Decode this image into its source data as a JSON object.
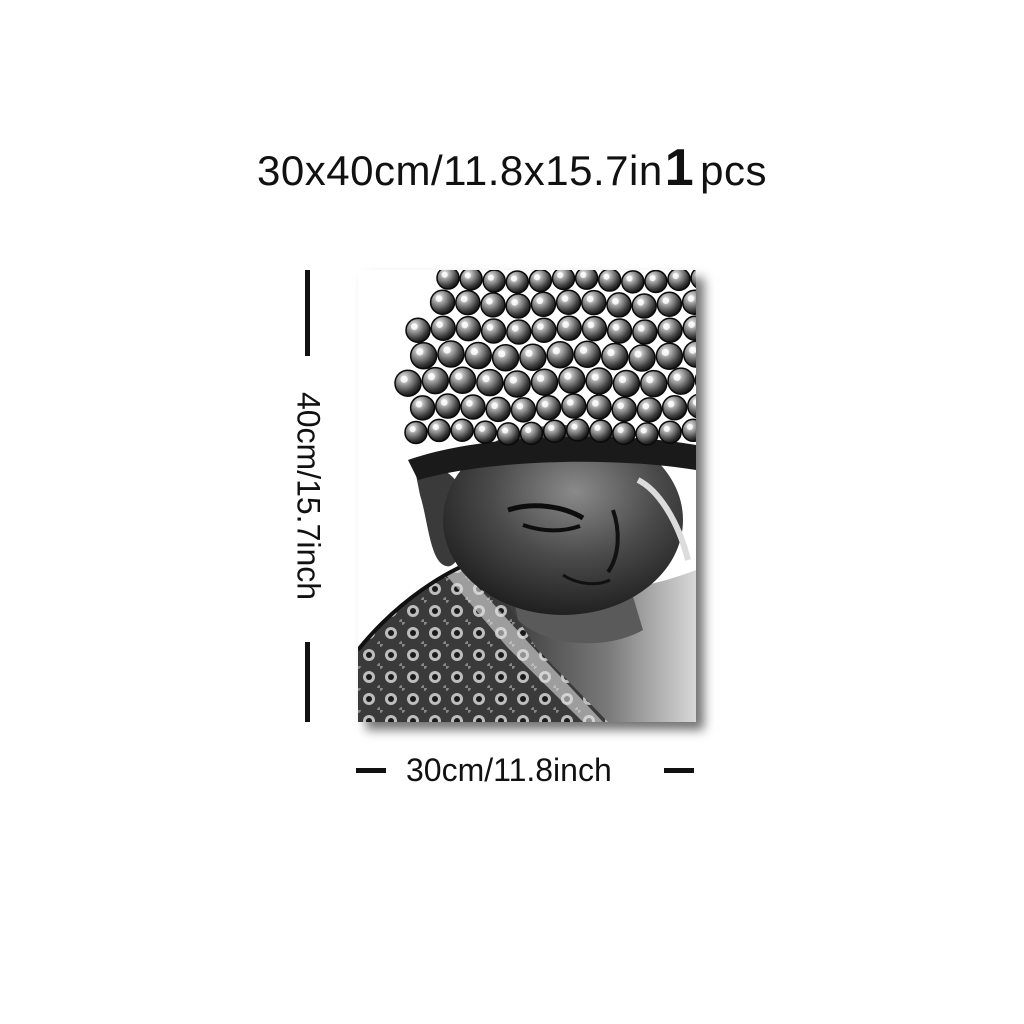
{
  "title": {
    "size_text": "30x40cm/11.8x15.7in",
    "quantity": "1",
    "unit": "pcs"
  },
  "product": {
    "image_subject": "buddha-statue-black-and-white"
  },
  "dimensions": {
    "height_label": "40cm/15.7inch",
    "width_label": "30cm/11.8inch"
  },
  "colors": {
    "background": "#ffffff",
    "text": "#111111",
    "image_tone": "grayscale"
  }
}
